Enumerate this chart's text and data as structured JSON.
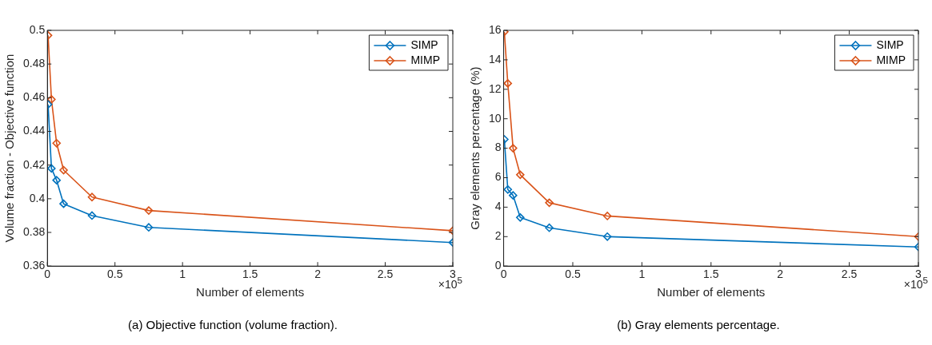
{
  "chart_data": [
    {
      "type": "line",
      "xlabel": "Number of elements",
      "ylabel": "Volume fraction - Objective function",
      "x": [
        0.005,
        0.03,
        0.068,
        0.12,
        0.33,
        0.75,
        3
      ],
      "series": [
        {
          "name": "SIMP",
          "color": "#0072bd",
          "values": [
            0.456,
            0.418,
            0.411,
            0.397,
            0.39,
            0.383,
            0.374
          ]
        },
        {
          "name": "MIMP",
          "color": "#d95319",
          "values": [
            0.497,
            0.459,
            0.433,
            0.417,
            0.401,
            0.393,
            0.381
          ]
        }
      ],
      "xlim": [
        0,
        3
      ],
      "xticks": [
        0,
        0.5,
        1,
        1.5,
        2,
        2.5,
        3
      ],
      "ylim": [
        0.36,
        0.5
      ],
      "yticks": [
        0.36,
        0.38,
        0.4,
        0.42,
        0.44,
        0.46,
        0.48,
        0.5
      ],
      "marker": "diamond",
      "legend": "top right",
      "grid": false,
      "annotations": [
        "×10$^{5}$",
        "(a)  Objective function (volume fraction)."
      ]
    },
    {
      "type": "line",
      "xlabel": "Number of elements",
      "ylabel": "Gray elements percentage (%)",
      "x": [
        0.005,
        0.03,
        0.068,
        0.12,
        0.33,
        0.75,
        3
      ],
      "series": [
        {
          "name": "SIMP",
          "color": "#0072bd",
          "values": [
            8.6,
            5.2,
            4.8,
            3.3,
            2.6,
            2.0,
            1.3
          ]
        },
        {
          "name": "MIMP",
          "color": "#d95319",
          "values": [
            15.9,
            12.4,
            8.0,
            6.2,
            4.3,
            3.4,
            2.0
          ]
        }
      ],
      "xlim": [
        0,
        3
      ],
      "xticks": [
        0,
        0.5,
        1,
        1.5,
        2,
        2.5,
        3
      ],
      "ylim": [
        0,
        16
      ],
      "yticks": [
        0,
        2,
        4,
        6,
        8,
        10,
        12,
        14,
        16
      ],
      "marker": "diamond",
      "legend": "top right",
      "grid": false,
      "annotations": [
        "×10$^{5}$",
        "(b)  Gray elements percentage."
      ]
    }
  ]
}
